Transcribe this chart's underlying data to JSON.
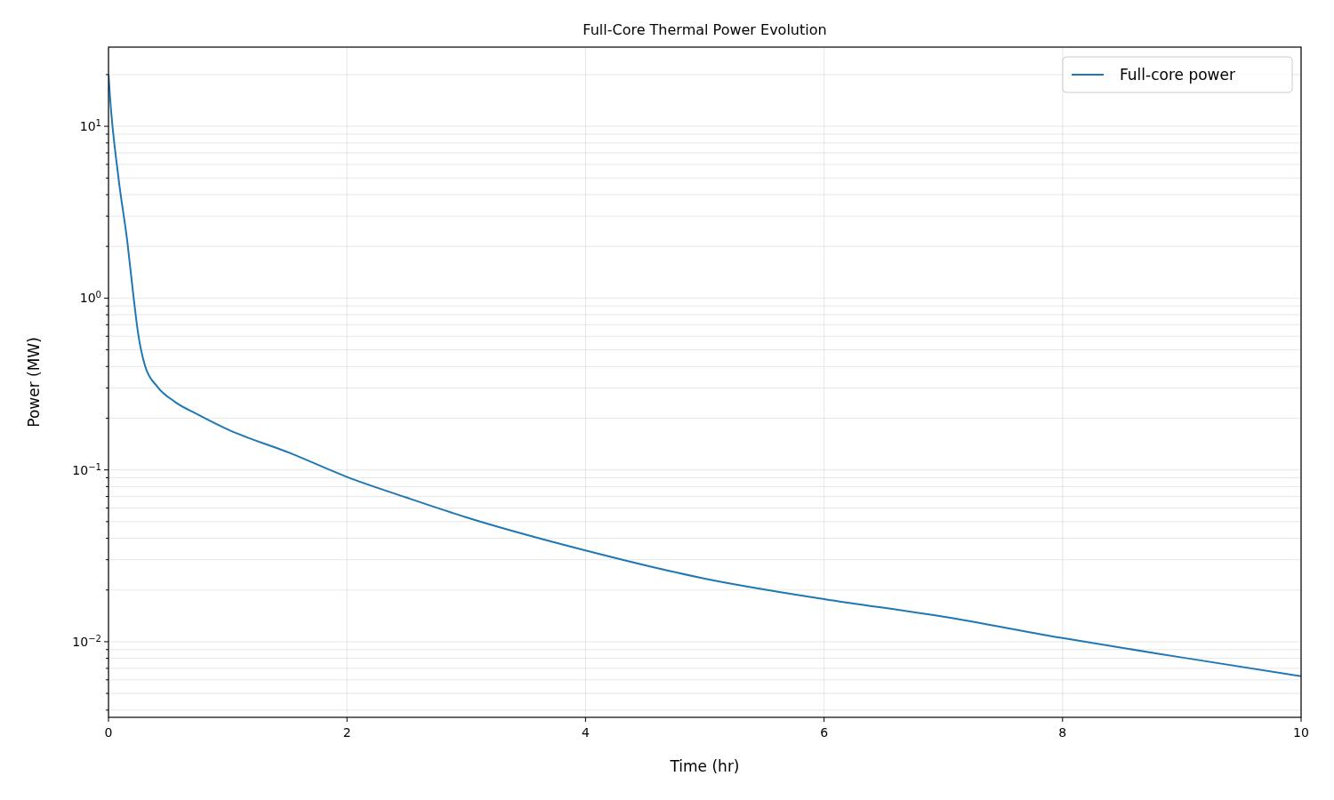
{
  "chart_data": {
    "type": "line",
    "title": "Full-Core Thermal Power Evolution",
    "xlabel": "Time (hr)",
    "ylabel": "Power (MW)",
    "x": [
      0,
      0.012,
      0.084,
      0.159,
      0.209,
      0.246,
      0.308,
      0.41,
      0.557,
      0.75,
      1,
      1.526,
      2,
      2.5,
      3,
      4,
      5,
      6,
      7,
      8,
      9,
      10
    ],
    "series": [
      {
        "name": "Full-core power",
        "color": "#1f77b4",
        "values": [
          20,
          15,
          5.0,
          2.1,
          1.03,
          0.64,
          0.4,
          0.305,
          0.249,
          0.21,
          0.172,
          0.125,
          0.091,
          0.069,
          0.053,
          0.034,
          0.0233,
          0.0177,
          0.014,
          0.0105,
          0.0081,
          0.0063
        ]
      }
    ],
    "log": "y",
    "xlim": [
      0,
      10
    ],
    "xticks": [
      0,
      2,
      4,
      6,
      8,
      10
    ],
    "ylim": [
      0.00363,
      28.9
    ],
    "yticks": [
      {
        "value": 0.004,
        "label": null
      },
      {
        "value": 0.005,
        "label": null
      },
      {
        "value": 0.006,
        "label": null
      },
      {
        "value": 0.007,
        "label": null
      },
      {
        "value": 0.008,
        "label": null
      },
      {
        "value": 0.009,
        "label": null
      },
      {
        "value": 0.01,
        "label": "10$^{−2}$"
      },
      {
        "value": 0.02,
        "label": null
      },
      {
        "value": 0.03,
        "label": null
      },
      {
        "value": 0.04,
        "label": null
      },
      {
        "value": 0.05,
        "label": null
      },
      {
        "value": 0.06,
        "label": null
      },
      {
        "value": 0.07,
        "label": null
      },
      {
        "value": 0.08,
        "label": null
      },
      {
        "value": 0.09,
        "label": null
      },
      {
        "value": 0.1,
        "label": "10$^{−1}$"
      },
      {
        "value": 0.2,
        "label": null
      },
      {
        "value": 0.3,
        "label": null
      },
      {
        "value": 0.4,
        "label": null
      },
      {
        "value": 0.5,
        "label": null
      },
      {
        "value": 0.6,
        "label": null
      },
      {
        "value": 0.7,
        "label": null
      },
      {
        "value": 0.8,
        "label": null
      },
      {
        "value": 0.9,
        "label": null
      },
      {
        "value": 1,
        "label": "10$^{0}$"
      },
      {
        "value": 2,
        "label": null
      },
      {
        "value": 3,
        "label": null
      },
      {
        "value": 4,
        "label": null
      },
      {
        "value": 5,
        "label": null
      },
      {
        "value": 6,
        "label": null
      },
      {
        "value": 7,
        "label": null
      },
      {
        "value": 8,
        "label": null
      },
      {
        "value": 9,
        "label": null
      },
      {
        "value": 10,
        "label": "10$^{1}$"
      },
      {
        "value": 20,
        "label": null
      }
    ],
    "grid": true,
    "legend": "top right",
    "marker": "none",
    "line_style": "solid"
  }
}
